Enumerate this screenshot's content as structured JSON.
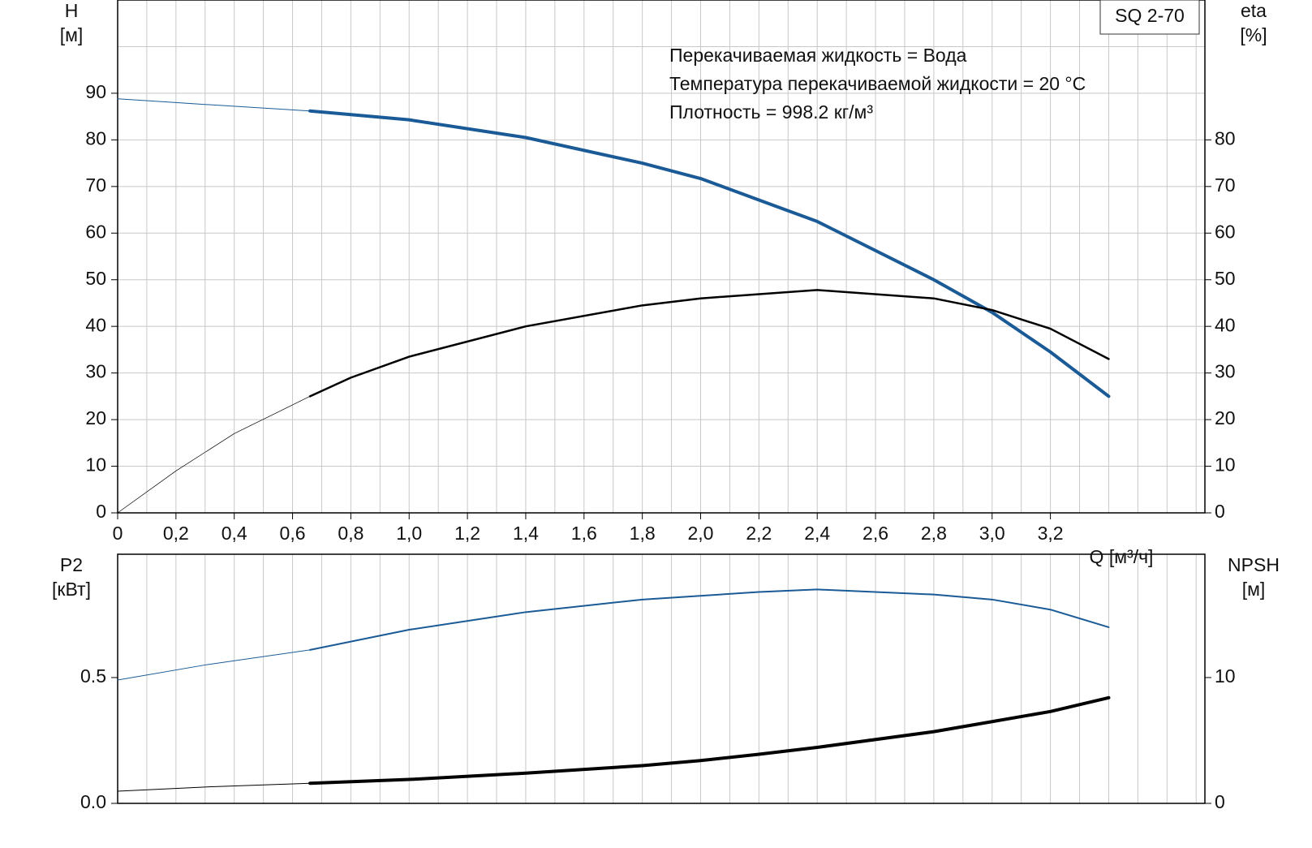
{
  "chart_data": [
    {
      "type": "line",
      "title": "SQ 2-70",
      "annotations": [
        "Перекачиваемая жидкость = Вода",
        "Температура перекачиваемой жидкости = 20 °C",
        "Плотность = 998.2 кг/м³"
      ],
      "xlabel": "Q [м³/ч]",
      "ylabel": [
        "H",
        "[м]"
      ],
      "y2label": [
        "eta",
        "[%]"
      ],
      "xlim": [
        0,
        3.73
      ],
      "xticks": [
        0,
        {
          "value": 0.2,
          "label": "0,2"
        },
        {
          "value": 0.4,
          "label": "0,4"
        },
        {
          "value": 0.6,
          "label": "0,6"
        },
        {
          "value": 0.8,
          "label": "0,8"
        },
        {
          "value": 1.0,
          "label": "1,0"
        },
        {
          "value": 1.2,
          "label": "1,2"
        },
        {
          "value": 1.4,
          "label": "1,4"
        },
        {
          "value": 1.6,
          "label": "1,6"
        },
        {
          "value": 1.8,
          "label": "1,8"
        },
        {
          "value": 2.0,
          "label": "2,0"
        },
        {
          "value": 2.2,
          "label": "2,2"
        },
        {
          "value": 2.4,
          "label": "2,4"
        },
        {
          "value": 2.6,
          "label": "2,6"
        },
        {
          "value": 2.8,
          "label": "2,8"
        },
        {
          "value": 3.0,
          "label": "3,0"
        },
        {
          "value": 3.2,
          "label": "3,2"
        }
      ],
      "x_minor_ticks": [
        0.1,
        0.3,
        0.5,
        0.7,
        0.9,
        1.1,
        1.3,
        1.5,
        1.7,
        1.9,
        2.1,
        2.3,
        2.5,
        2.7,
        2.9,
        3.1,
        3.3,
        3.4,
        3.5,
        3.6,
        3.7
      ],
      "ylim": [
        0,
        110
      ],
      "yticks": [
        0,
        10,
        20,
        30,
        40,
        50,
        60,
        70,
        80,
        90
      ],
      "y_minor_ticks": [
        100
      ],
      "y2lim": [
        0,
        110
      ],
      "y2ticks": [
        0,
        10,
        20,
        30,
        40,
        50,
        60,
        70,
        80
      ],
      "grid": true,
      "series": [
        {
          "color": "#1a5a96",
          "width": 1,
          "axis": "y",
          "x": [
            0,
            0.3,
            0.66
          ],
          "values": [
            88.8,
            87.6,
            86.2
          ]
        },
        {
          "color": "#1a5a96",
          "width": 4,
          "axis": "y",
          "x": [
            0.66,
            1.0,
            1.4,
            1.8,
            2.0,
            2.4,
            2.8,
            3.0,
            3.2,
            3.4
          ],
          "values": [
            86.2,
            84.3,
            80.5,
            75,
            71.7,
            62.5,
            50,
            43,
            34.5,
            25
          ]
        },
        {
          "color": "#000000",
          "width": 0.7,
          "axis": "y2",
          "x": [
            0,
            0.2,
            0.4,
            0.66
          ],
          "values": [
            0,
            9,
            17,
            25
          ]
        },
        {
          "color": "#000000",
          "width": 2.5,
          "axis": "y2",
          "x": [
            0.66,
            0.8,
            1.0,
            1.4,
            1.8,
            2.0,
            2.4,
            2.8,
            3.0,
            3.2,
            3.4
          ],
          "values": [
            25,
            29,
            33.5,
            40,
            44.5,
            46,
            47.8,
            46,
            43.5,
            39.5,
            33
          ]
        }
      ]
    },
    {
      "type": "line",
      "ylabel": [
        "P2",
        "[кВт]"
      ],
      "y2label": [
        "NPSH",
        "[м]"
      ],
      "xlim": [
        0,
        3.73
      ],
      "x_minor_ticks": [
        0.1,
        0.2,
        0.3,
        0.4,
        0.5,
        0.6,
        0.7,
        0.8,
        0.9,
        1.0,
        1.1,
        1.2,
        1.3,
        1.4,
        1.5,
        1.6,
        1.7,
        1.8,
        1.9,
        2.0,
        2.1,
        2.2,
        2.3,
        2.4,
        2.5,
        2.6,
        2.7,
        2.8,
        2.9,
        3.0,
        3.1,
        3.2,
        3.3,
        3.4,
        3.5,
        3.6,
        3.7
      ],
      "ylim": [
        0,
        0.99
      ],
      "yticks": [
        {
          "value": 0,
          "label": "0.0"
        },
        0.5
      ],
      "y2lim": [
        0,
        19.8
      ],
      "y2ticks": [
        0,
        10
      ],
      "grid": true,
      "series": [
        {
          "color": "#1a5a96",
          "width": 1,
          "axis": "y",
          "x": [
            0,
            0.3,
            0.66
          ],
          "values": [
            0.49,
            0.55,
            0.61
          ]
        },
        {
          "color": "#1a5a96",
          "width": 2,
          "axis": "y",
          "x": [
            0.66,
            1.0,
            1.4,
            1.8,
            2.2,
            2.4,
            2.8,
            3.0,
            3.2,
            3.4
          ],
          "values": [
            0.61,
            0.69,
            0.76,
            0.81,
            0.84,
            0.85,
            0.83,
            0.81,
            0.77,
            0.7
          ]
        },
        {
          "color": "#000000",
          "width": 1,
          "axis": "y2",
          "x": [
            0,
            0.3,
            0.66
          ],
          "values": [
            0.97,
            1.3,
            1.6
          ]
        },
        {
          "color": "#000000",
          "width": 4,
          "axis": "y2",
          "x": [
            0.66,
            1.0,
            1.4,
            1.8,
            2.0,
            2.2,
            2.4,
            2.8,
            3.0,
            3.2,
            3.4
          ],
          "values": [
            1.6,
            1.9,
            2.4,
            3.0,
            3.4,
            3.9,
            4.45,
            5.7,
            6.5,
            7.3,
            8.4
          ]
        }
      ]
    }
  ]
}
